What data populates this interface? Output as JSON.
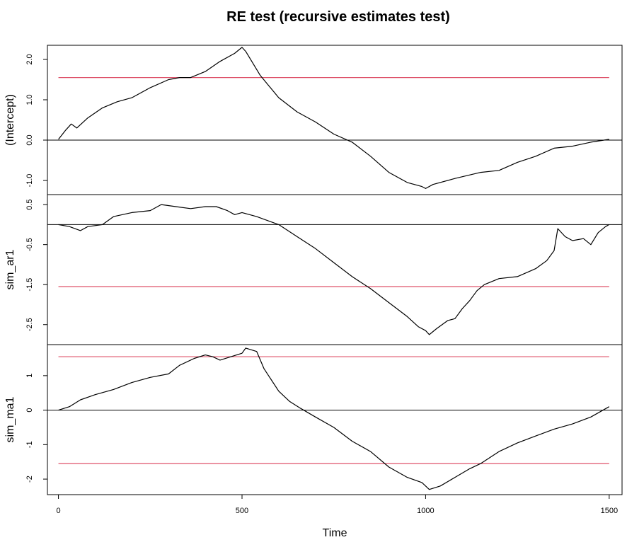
{
  "chart_data": {
    "type": "line",
    "title": "RE test (recursive estimates test)",
    "xlabel": "Time",
    "xlim": [
      -30,
      1535
    ],
    "x_ticks": [
      0,
      500,
      1000,
      1500
    ],
    "x_tick_labels": [
      "0",
      "500",
      "1000",
      "1500"
    ],
    "grid": false,
    "colors": {
      "series": "#000000",
      "zero_line": "#000000",
      "boundary": "#df536b"
    },
    "panels": [
      {
        "ylabel": "(Intercept)",
        "ylim": [
          -1.35,
          2.35
        ],
        "y_ticks": [
          2.0,
          1.0,
          0.0,
          -1.0
        ],
        "y_tick_labels": [
          "2.0",
          "1.0",
          "0.0",
          "-1.0"
        ],
        "hlines": [
          0
        ],
        "boundaries": [
          1.55
        ],
        "points": [
          [
            0,
            0.02
          ],
          [
            20,
            0.25
          ],
          [
            35,
            0.4
          ],
          [
            50,
            0.3
          ],
          [
            80,
            0.55
          ],
          [
            120,
            0.8
          ],
          [
            160,
            0.95
          ],
          [
            200,
            1.05
          ],
          [
            250,
            1.3
          ],
          [
            300,
            1.5
          ],
          [
            330,
            1.55
          ],
          [
            360,
            1.55
          ],
          [
            400,
            1.7
          ],
          [
            440,
            1.95
          ],
          [
            480,
            2.15
          ],
          [
            500,
            2.3
          ],
          [
            510,
            2.2
          ],
          [
            550,
            1.6
          ],
          [
            600,
            1.05
          ],
          [
            650,
            0.7
          ],
          [
            700,
            0.45
          ],
          [
            750,
            0.15
          ],
          [
            800,
            -0.05
          ],
          [
            850,
            -0.4
          ],
          [
            900,
            -0.8
          ],
          [
            950,
            -1.05
          ],
          [
            990,
            -1.15
          ],
          [
            1000,
            -1.2
          ],
          [
            1020,
            -1.1
          ],
          [
            1080,
            -0.95
          ],
          [
            1150,
            -0.8
          ],
          [
            1200,
            -0.75
          ],
          [
            1250,
            -0.55
          ],
          [
            1300,
            -0.4
          ],
          [
            1350,
            -0.2
          ],
          [
            1400,
            -0.15
          ],
          [
            1450,
            -0.05
          ],
          [
            1500,
            0.02
          ]
        ]
      },
      {
        "ylabel": "sim_ar1",
        "ylim": [
          -3.0,
          0.75
        ],
        "y_ticks": [
          0.5,
          -0.5,
          -1.5,
          -2.5
        ],
        "y_tick_labels": [
          "0.5",
          "-0.5",
          "-1.5",
          "-2.5"
        ],
        "hlines": [
          0
        ],
        "boundaries": [
          -1.55
        ],
        "points": [
          [
            0,
            0.0
          ],
          [
            30,
            -0.05
          ],
          [
            60,
            -0.15
          ],
          [
            80,
            -0.05
          ],
          [
            120,
            0.0
          ],
          [
            150,
            0.2
          ],
          [
            200,
            0.3
          ],
          [
            250,
            0.35
          ],
          [
            280,
            0.5
          ],
          [
            320,
            0.45
          ],
          [
            360,
            0.4
          ],
          [
            400,
            0.45
          ],
          [
            430,
            0.45
          ],
          [
            460,
            0.35
          ],
          [
            480,
            0.25
          ],
          [
            500,
            0.3
          ],
          [
            540,
            0.2
          ],
          [
            600,
            0.0
          ],
          [
            650,
            -0.3
          ],
          [
            700,
            -0.6
          ],
          [
            750,
            -0.95
          ],
          [
            800,
            -1.3
          ],
          [
            850,
            -1.6
          ],
          [
            900,
            -1.95
          ],
          [
            950,
            -2.3
          ],
          [
            980,
            -2.55
          ],
          [
            1000,
            -2.65
          ],
          [
            1010,
            -2.75
          ],
          [
            1030,
            -2.6
          ],
          [
            1060,
            -2.4
          ],
          [
            1080,
            -2.35
          ],
          [
            1100,
            -2.1
          ],
          [
            1120,
            -1.9
          ],
          [
            1140,
            -1.65
          ],
          [
            1160,
            -1.5
          ],
          [
            1200,
            -1.35
          ],
          [
            1250,
            -1.3
          ],
          [
            1300,
            -1.1
          ],
          [
            1330,
            -0.9
          ],
          [
            1350,
            -0.65
          ],
          [
            1360,
            -0.1
          ],
          [
            1380,
            -0.3
          ],
          [
            1400,
            -0.4
          ],
          [
            1430,
            -0.35
          ],
          [
            1450,
            -0.5
          ],
          [
            1470,
            -0.2
          ],
          [
            1490,
            -0.05
          ],
          [
            1500,
            0.0
          ]
        ]
      },
      {
        "ylabel": "sim_ma1",
        "ylim": [
          -2.45,
          1.9
        ],
        "y_ticks": [
          1,
          0,
          -1,
          -2
        ],
        "y_tick_labels": [
          "1",
          "0",
          "-1",
          "-2"
        ],
        "hlines": [
          0
        ],
        "boundaries": [
          1.55,
          -1.55
        ],
        "points": [
          [
            0,
            0.0
          ],
          [
            30,
            0.1
          ],
          [
            60,
            0.3
          ],
          [
            100,
            0.45
          ],
          [
            150,
            0.6
          ],
          [
            200,
            0.8
          ],
          [
            250,
            0.95
          ],
          [
            300,
            1.05
          ],
          [
            330,
            1.3
          ],
          [
            370,
            1.5
          ],
          [
            400,
            1.6
          ],
          [
            420,
            1.55
          ],
          [
            440,
            1.45
          ],
          [
            470,
            1.55
          ],
          [
            500,
            1.65
          ],
          [
            510,
            1.8
          ],
          [
            540,
            1.7
          ],
          [
            560,
            1.2
          ],
          [
            600,
            0.55
          ],
          [
            630,
            0.25
          ],
          [
            660,
            0.05
          ],
          [
            700,
            -0.2
          ],
          [
            750,
            -0.5
          ],
          [
            800,
            -0.9
          ],
          [
            850,
            -1.2
          ],
          [
            900,
            -1.65
          ],
          [
            950,
            -1.95
          ],
          [
            990,
            -2.1
          ],
          [
            1000,
            -2.2
          ],
          [
            1010,
            -2.3
          ],
          [
            1040,
            -2.2
          ],
          [
            1080,
            -1.95
          ],
          [
            1120,
            -1.7
          ],
          [
            1150,
            -1.55
          ],
          [
            1200,
            -1.2
          ],
          [
            1250,
            -0.95
          ],
          [
            1300,
            -0.75
          ],
          [
            1350,
            -0.55
          ],
          [
            1400,
            -0.4
          ],
          [
            1450,
            -0.2
          ],
          [
            1500,
            0.1
          ]
        ]
      }
    ]
  }
}
